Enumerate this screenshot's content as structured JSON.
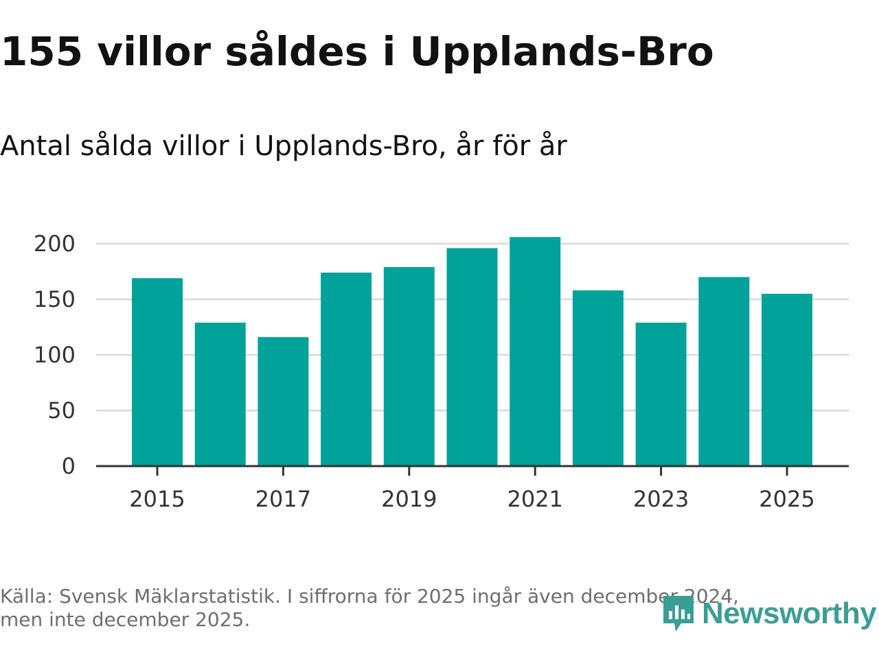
{
  "header": {
    "title": "155 villor såldes i Upplands-Bro",
    "subtitle": "Antal sålda villor i Upplands-Bro, år för år"
  },
  "chart_data": {
    "type": "bar",
    "title": "155 villor såldes i Upplands-Bro",
    "subtitle": "Antal sålda villor i Upplands-Bro, år för år",
    "xlabel": "",
    "ylabel": "",
    "categories": [
      "2015",
      "2016",
      "2017",
      "2018",
      "2019",
      "2020",
      "2021",
      "2022",
      "2023",
      "2024",
      "2025"
    ],
    "values": [
      169,
      129,
      116,
      174,
      179,
      196,
      206,
      158,
      129,
      170,
      155
    ],
    "x_tick_labels": [
      "2015",
      "2017",
      "2019",
      "2021",
      "2023",
      "2025"
    ],
    "y_ticks": [
      0,
      50,
      100,
      150,
      200
    ],
    "ylim": [
      0,
      210
    ],
    "grid": true,
    "bar_color": "#00a29a"
  },
  "footer": {
    "source_line1": "Källa: Svensk Mäklarstatistik. I siffrorna för 2025 ingår även december 2024,",
    "source_line2": "men inte december 2025."
  },
  "brand": {
    "name": "Newsworthy",
    "icon": "newsworthy-logo-icon",
    "color": "#3b9e96"
  }
}
